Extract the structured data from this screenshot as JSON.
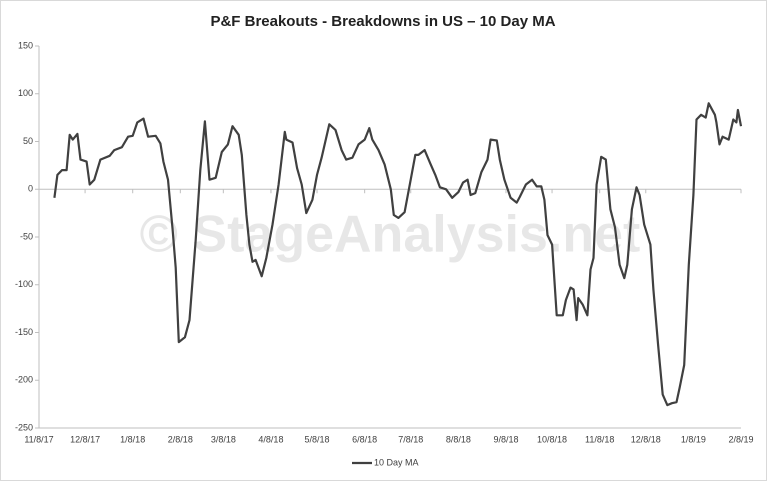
{
  "chart_data": {
    "type": "line",
    "title": "P&F Breakouts - Breakdowns in US – 10 Day MA",
    "watermark": "© StageAnalysis.net",
    "x": [
      "11/18/17",
      "11/20/17",
      "11/23/17",
      "11/26/17",
      "11/28/17",
      "11/30/17",
      "12/3/17",
      "12/5/17",
      "12/9/17",
      "12/11/17",
      "12/14/17",
      "12/18/17",
      "12/24/17",
      "12/27/17",
      "1/1/18",
      "1/5/18",
      "1/8/18",
      "1/11/18",
      "1/15/18",
      "1/18/18",
      "1/23/18",
      "1/26/18",
      "1/28/18",
      "1/31/18",
      "2/3/18",
      "2/5/18",
      "2/7/18",
      "2/11/18",
      "2/14/18",
      "2/16/18",
      "2/18/18",
      "2/21/18",
      "2/24/18",
      "2/27/18",
      "3/3/18",
      "3/7/18",
      "3/11/18",
      "3/14/18",
      "3/18/18",
      "3/20/18",
      "3/23/18",
      "3/25/18",
      "3/27/18",
      "3/29/18",
      "4/2/18",
      "4/5/18",
      "4/9/18",
      "4/13/18",
      "4/17/18",
      "4/18/18",
      "4/22/18",
      "4/25/18",
      "4/28/18",
      "5/1/18",
      "5/5/18",
      "5/8/18",
      "5/11/18",
      "5/16/18",
      "5/20/18",
      "5/24/18",
      "5/27/18",
      "5/31/18",
      "6/4/18",
      "6/8/18",
      "6/11/18",
      "6/13/18",
      "6/17/18",
      "6/21/18",
      "6/25/18",
      "6/27/18",
      "6/30/18",
      "7/4/18",
      "7/8/18",
      "7/11/18",
      "7/13/18",
      "7/17/18",
      "7/21/18",
      "7/24/18",
      "7/27/18",
      "7/31/18",
      "8/4/18",
      "8/8/18",
      "8/11/18",
      "8/14/18",
      "8/16/18",
      "8/19/18",
      "8/23/18",
      "8/27/18",
      "8/29/18",
      "9/2/18",
      "9/4/18",
      "9/7/18",
      "9/11/18",
      "9/15/18",
      "9/17/18",
      "9/21/18",
      "9/25/18",
      "9/28/18",
      "10/1/18",
      "10/3/18",
      "10/5/18",
      "10/8/18",
      "10/11/18",
      "10/15/18",
      "10/17/18",
      "10/20/18",
      "10/22/18",
      "10/24/18",
      "10/25/18",
      "10/28/18",
      "10/31/18",
      "11/2/18",
      "11/4/18",
      "11/6/18",
      "11/9/18",
      "11/12/18",
      "11/15/18",
      "11/18/18",
      "11/21/18",
      "11/24/18",
      "11/26/18",
      "11/29/18",
      "12/2/18",
      "12/4/18",
      "12/7/18",
      "12/11/18",
      "12/13/18",
      "12/16/18",
      "12/19/18",
      "12/22/18",
      "12/25/18",
      "12/28/18",
      "12/30/18",
      "1/2/19",
      "1/5/19",
      "1/8/19",
      "1/10/19",
      "1/13/19",
      "1/16/19",
      "1/18/19",
      "1/22/19",
      "1/23/19",
      "1/25/19",
      "1/27/19",
      "1/31/19",
      "2/3/19",
      "2/5/19",
      "2/6/19",
      "2/8/19"
    ],
    "series": [
      {
        "name": "10 Day MA",
        "color": "#404040",
        "values": [
          -9,
          15,
          20,
          20,
          57,
          52,
          58,
          31,
          29,
          5,
          10,
          31,
          35,
          41,
          44,
          55,
          56,
          70,
          74,
          55,
          56,
          48,
          29,
          10,
          -42,
          -82,
          -160,
          -155,
          -137,
          -95,
          -53,
          20,
          71,
          10,
          12,
          39,
          47,
          66,
          57,
          36,
          -27,
          -58,
          -76,
          -74,
          -91,
          -72,
          -37,
          5,
          60,
          52,
          49,
          22,
          5,
          -25,
          -11,
          15,
          33,
          68,
          62,
          41,
          31,
          33,
          47,
          52,
          64,
          52,
          41,
          26,
          0,
          -27,
          -30,
          -24,
          10,
          36,
          36,
          41,
          26,
          15,
          2,
          0,
          -9,
          -3,
          7,
          10,
          -6,
          -4,
          18,
          31,
          52,
          51,
          31,
          10,
          -9,
          -14,
          -8,
          5,
          10,
          3,
          3,
          -11,
          -48,
          -58,
          -132,
          -132,
          -116,
          -103,
          -105,
          -137,
          -114,
          -121,
          -132,
          -84,
          -72,
          5,
          34,
          31,
          -21,
          -40,
          -79,
          -93,
          -79,
          -21,
          2,
          -6,
          -37,
          -58,
          -105,
          -163,
          -215,
          -226,
          -224,
          -223,
          -208,
          -184,
          -79,
          -6,
          73,
          78,
          75,
          90,
          78,
          70,
          47,
          55,
          52,
          73,
          70,
          83,
          66
        ]
      }
    ],
    "xlim": [
      "11/8/17",
      "2/8/19"
    ],
    "xticks": [
      "11/8/17",
      "12/8/17",
      "1/8/18",
      "2/8/18",
      "3/8/18",
      "4/8/18",
      "5/8/18",
      "6/8/18",
      "7/8/18",
      "8/8/18",
      "9/8/18",
      "10/8/18",
      "11/8/18",
      "12/8/18",
      "1/8/19",
      "2/8/19"
    ],
    "ylim": [
      -250,
      150
    ],
    "yticks": [
      -250,
      -200,
      -150,
      -100,
      -50,
      0,
      50,
      100,
      150
    ],
    "legend": "bottom"
  }
}
